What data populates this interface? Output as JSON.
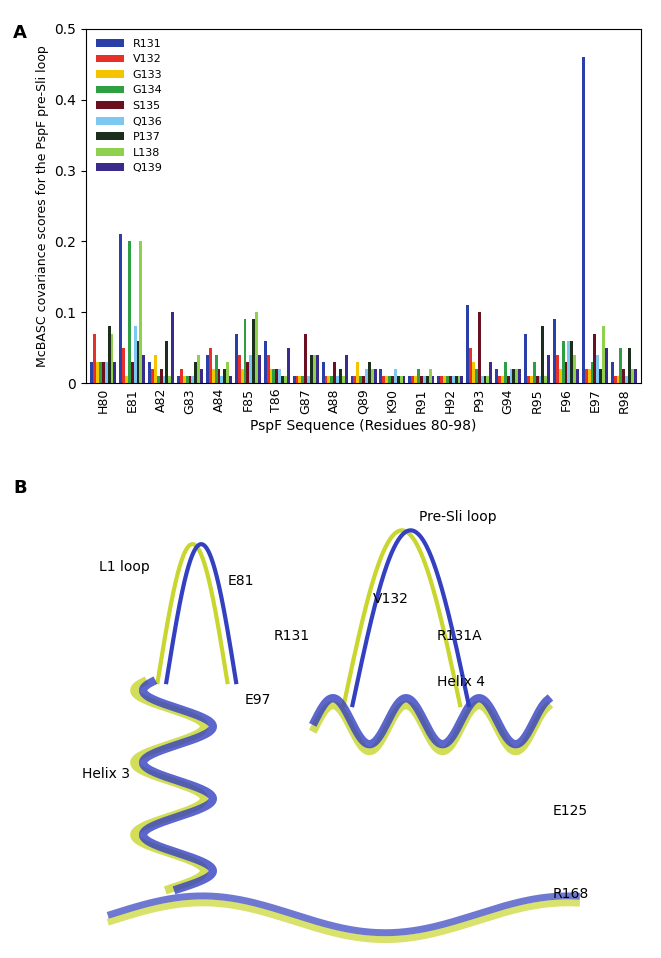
{
  "chart_data": {
    "type": "bar",
    "panel_label": "A",
    "y_label": "McBASC covariance scores for the PspF pre-Sli loop",
    "x_label": "PspF Sequence (Residues 80-98)",
    "categories": [
      "H80",
      "E81",
      "A82",
      "G83",
      "A84",
      "F85",
      "T86",
      "G87",
      "A88",
      "Q89",
      "K90",
      "R91",
      "H92",
      "P93",
      "G94",
      "R95",
      "F96",
      "E97",
      "R98"
    ],
    "series": [
      {
        "name": "R131",
        "color": "#2b3fa8",
        "values": [
          0.03,
          0.21,
          0.03,
          0.01,
          0.04,
          0.07,
          0.06,
          0.01,
          0.03,
          0.01,
          0.02,
          0.01,
          0.01,
          0.11,
          0.02,
          0.07,
          0.09,
          0.46,
          0.03
        ]
      },
      {
        "name": "V132",
        "color": "#e8302a",
        "values": [
          0.07,
          0.05,
          0.02,
          0.02,
          0.05,
          0.04,
          0.04,
          0.01,
          0.01,
          0.01,
          0.01,
          0.01,
          0.01,
          0.05,
          0.01,
          0.01,
          0.04,
          0.02,
          0.01
        ]
      },
      {
        "name": "G133",
        "color": "#f5c400",
        "values": [
          0.03,
          0.01,
          0.04,
          0.01,
          0.02,
          0.02,
          0.02,
          0.01,
          0.01,
          0.03,
          0.01,
          0.01,
          0.01,
          0.03,
          0.01,
          0.01,
          0.02,
          0.02,
          0.01
        ]
      },
      {
        "name": "G134",
        "color": "#2ea043",
        "values": [
          0.03,
          0.2,
          0.01,
          0.01,
          0.04,
          0.09,
          0.02,
          0.01,
          0.01,
          0.01,
          0.01,
          0.02,
          0.01,
          0.02,
          0.03,
          0.03,
          0.06,
          0.03,
          0.05
        ]
      },
      {
        "name": "S135",
        "color": "#6b1020",
        "values": [
          0.03,
          0.03,
          0.02,
          0.01,
          0.02,
          0.03,
          0.02,
          0.07,
          0.03,
          0.01,
          0.01,
          0.01,
          0.01,
          0.1,
          0.01,
          0.01,
          0.03,
          0.07,
          0.02
        ]
      },
      {
        "name": "Q136",
        "color": "#7cc8f0",
        "values": [
          0.03,
          0.08,
          0.01,
          0.01,
          0.01,
          0.04,
          0.02,
          0.01,
          0.01,
          0.02,
          0.02,
          0.01,
          0.01,
          0.01,
          0.02,
          0.01,
          0.06,
          0.04,
          0.01
        ]
      },
      {
        "name": "P137",
        "color": "#1c2e1c",
        "values": [
          0.08,
          0.06,
          0.06,
          0.03,
          0.02,
          0.09,
          0.01,
          0.04,
          0.02,
          0.03,
          0.01,
          0.01,
          0.01,
          0.01,
          0.02,
          0.08,
          0.06,
          0.02,
          0.05
        ]
      },
      {
        "name": "L138",
        "color": "#8fd14f",
        "values": [
          0.07,
          0.2,
          0.01,
          0.04,
          0.03,
          0.1,
          0.01,
          0.04,
          0.01,
          0.02,
          0.01,
          0.02,
          0.01,
          0.01,
          0.02,
          0.01,
          0.04,
          0.08,
          0.02
        ]
      },
      {
        "name": "Q139",
        "color": "#3a2a8c",
        "values": [
          0.03,
          0.04,
          0.1,
          0.02,
          0.01,
          0.04,
          0.05,
          0.04,
          0.04,
          0.02,
          0.01,
          0.01,
          0.01,
          0.03,
          0.02,
          0.04,
          0.02,
          0.05,
          0.02
        ]
      }
    ],
    "ylim": [
      0,
      0.5
    ],
    "yticks": [
      0,
      0.1,
      0.2,
      0.3,
      0.4,
      0.5
    ],
    "legend": "upper left",
    "grid": false
  },
  "structure": {
    "panel_label": "B",
    "labels": [
      "Pre-Sli loop",
      "L1 loop",
      "E81",
      "V132",
      "R131",
      "R131A",
      "E97",
      "Helix 3",
      "Helix 4",
      "E125",
      "R168"
    ]
  }
}
